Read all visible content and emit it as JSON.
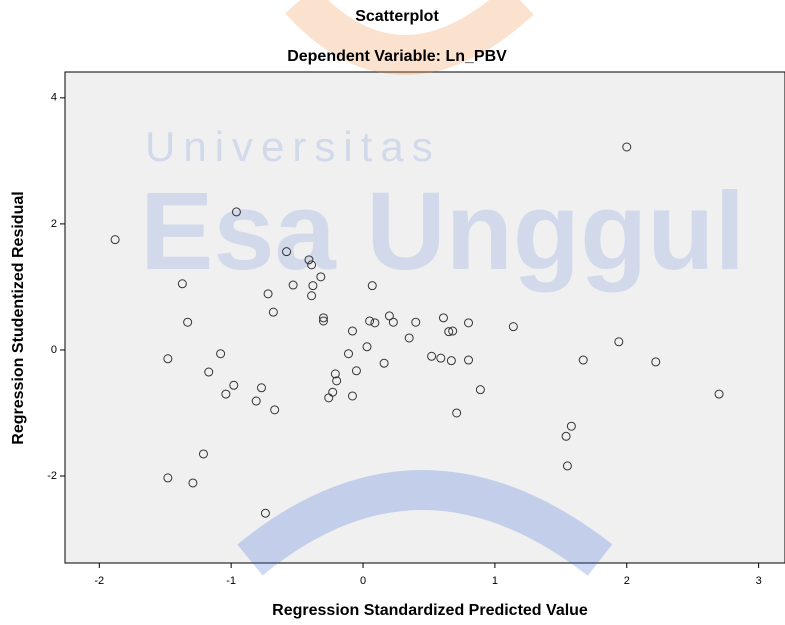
{
  "chart_data": {
    "type": "scatter",
    "title": "Scatterplot",
    "subtitle": "Dependent Variable: Ln_PBV",
    "x_label": "Regression Standardized Predicted Value",
    "y_label": "Regression Studentized Residual",
    "watermark": [
      "Universitas",
      "Esa Unggul"
    ],
    "xlim": [
      -2.26,
      3.2
    ],
    "ylim": [
      -3.38,
      4.41
    ],
    "xticks": [
      -2,
      -1,
      0,
      1,
      2,
      3
    ],
    "yticks": [
      -2,
      0,
      2,
      4
    ],
    "grid": false,
    "color": "#333333",
    "x": [
      -1.88,
      -0.96,
      2.0,
      -1.37,
      -1.33,
      -1.48,
      -1.48,
      -1.29,
      -1.21,
      -1.17,
      -1.08,
      -1.04,
      -0.98,
      -0.81,
      -0.77,
      -0.74,
      -0.72,
      -0.68,
      -0.67,
      -0.58,
      -0.53,
      -0.41,
      -0.39,
      -0.38,
      -0.39,
      -0.32,
      -0.3,
      -0.3,
      -0.26,
      -0.23,
      -0.21,
      -0.2,
      -0.11,
      -0.08,
      -0.08,
      -0.05,
      0.03,
      0.05,
      0.07,
      0.09,
      0.16,
      0.2,
      0.23,
      0.35,
      0.4,
      0.52,
      0.59,
      0.61,
      0.65,
      0.68,
      0.67,
      0.71,
      0.8,
      0.8,
      0.89,
      1.14,
      1.54,
      1.58,
      1.55,
      1.67,
      1.94,
      2.22,
      2.7
    ],
    "values": [
      1.75,
      2.19,
      3.22,
      1.05,
      0.44,
      -0.14,
      -2.03,
      -2.11,
      -1.65,
      -0.35,
      -0.06,
      -0.7,
      -0.56,
      -0.81,
      -0.6,
      -2.59,
      0.89,
      0.6,
      -0.95,
      1.56,
      1.03,
      1.43,
      1.35,
      1.02,
      0.86,
      1.16,
      0.51,
      0.46,
      -0.76,
      -0.67,
      -0.38,
      -0.49,
      -0.06,
      0.3,
      -0.73,
      -0.33,
      0.05,
      0.46,
      1.02,
      0.43,
      -0.21,
      0.54,
      0.44,
      0.19,
      0.44,
      -0.1,
      -0.13,
      0.51,
      0.29,
      0.3,
      -0.17,
      -1.0,
      0.43,
      -0.16,
      -0.63,
      0.37,
      -1.37,
      -1.21,
      -1.84,
      -0.16,
      0.13,
      -0.19,
      -0.7
    ]
  }
}
